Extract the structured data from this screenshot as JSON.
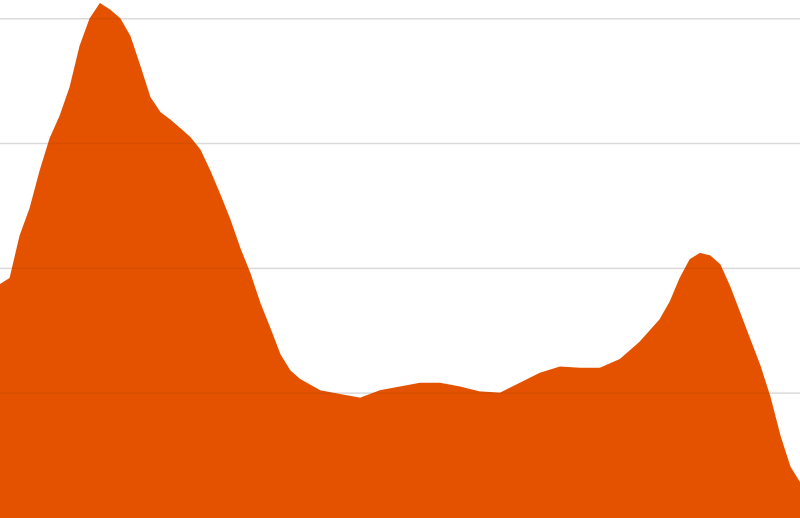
{
  "chart_data": {
    "type": "area",
    "title": "",
    "xlabel": "",
    "ylabel": "",
    "grid": true,
    "ylim": [
      0,
      4.15
    ],
    "xlim": [
      0,
      800
    ],
    "y_gridlines": [
      1,
      2,
      3,
      4
    ],
    "series": [
      {
        "color": "#e45200",
        "x": [
          0,
          10,
          20,
          30,
          40,
          50,
          60,
          70,
          80,
          90,
          100,
          110,
          120,
          130,
          140,
          150,
          160,
          170,
          180,
          190,
          200,
          210,
          220,
          230,
          240,
          250,
          260,
          270,
          280,
          290,
          300,
          320,
          340,
          360,
          380,
          400,
          420,
          440,
          460,
          480,
          500,
          520,
          540,
          560,
          580,
          600,
          620,
          640,
          660,
          670,
          680,
          690,
          700,
          710,
          720,
          730,
          740,
          750,
          760,
          770,
          780,
          790,
          800
        ],
        "values": [
          1.87,
          1.92,
          2.26,
          2.48,
          2.78,
          3.04,
          3.22,
          3.45,
          3.78,
          4.0,
          4.12,
          4.07,
          4.0,
          3.86,
          3.62,
          3.37,
          3.25,
          3.19,
          3.12,
          3.05,
          2.95,
          2.78,
          2.59,
          2.39,
          2.16,
          1.96,
          1.72,
          1.52,
          1.31,
          1.18,
          1.11,
          1.02,
          0.99,
          0.96,
          1.02,
          1.05,
          1.08,
          1.08,
          1.05,
          1.01,
          1.0,
          1.08,
          1.16,
          1.21,
          1.2,
          1.2,
          1.27,
          1.41,
          1.59,
          1.73,
          1.92,
          2.07,
          2.12,
          2.1,
          2.03,
          1.85,
          1.64,
          1.43,
          1.22,
          0.97,
          0.66,
          0.41,
          0.28
        ]
      }
    ]
  }
}
